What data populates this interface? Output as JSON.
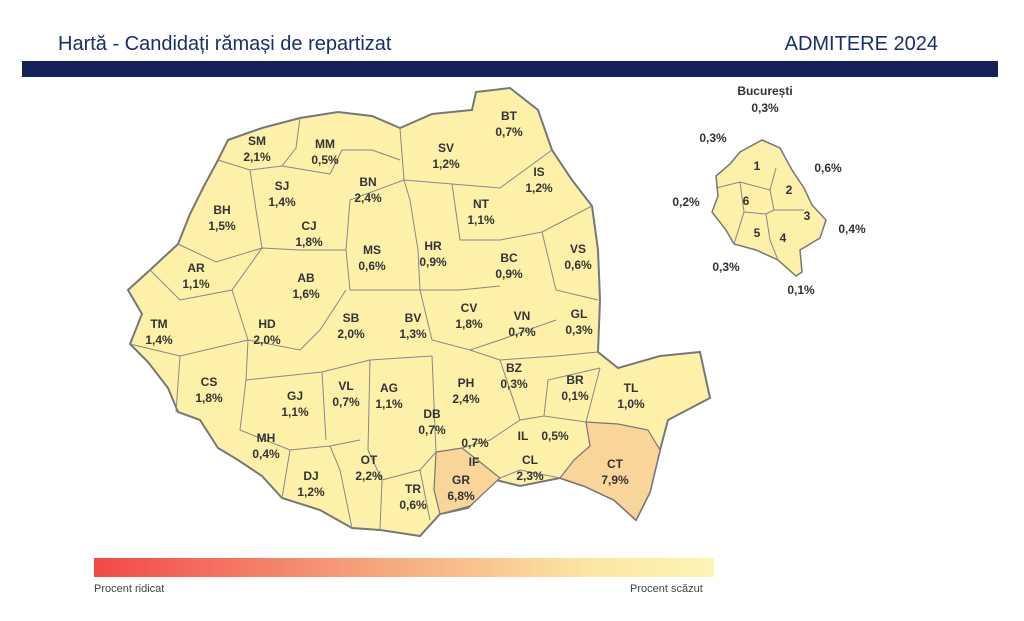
{
  "header": {
    "title": "Hartă - Candidați rămași de repartizat",
    "badge": "ADMITERE 2024"
  },
  "colors": {
    "header_bar": "#14215a",
    "county_fill": "#fdf0a8",
    "high_fill": "#fad59a",
    "border": "#777777"
  },
  "counties": [
    {
      "code": "SM",
      "value": "2,1%"
    },
    {
      "code": "MM",
      "value": "0,5%"
    },
    {
      "code": "BT",
      "value": "0,7%"
    },
    {
      "code": "SV",
      "value": "1,2%"
    },
    {
      "code": "IS",
      "value": "1,2%"
    },
    {
      "code": "BN",
      "value": "2,4%"
    },
    {
      "code": "SJ",
      "value": "1,4%"
    },
    {
      "code": "NT",
      "value": "1,1%"
    },
    {
      "code": "BH",
      "value": "1,5%"
    },
    {
      "code": "CJ",
      "value": "1,8%"
    },
    {
      "code": "MS",
      "value": "0,6%"
    },
    {
      "code": "HR",
      "value": "0,9%"
    },
    {
      "code": "VS",
      "value": "0,6%"
    },
    {
      "code": "BC",
      "value": "0,9%"
    },
    {
      "code": "AR",
      "value": "1,1%"
    },
    {
      "code": "AB",
      "value": "1,6%"
    },
    {
      "code": "SB",
      "value": "2,0%"
    },
    {
      "code": "BV",
      "value": "1,3%"
    },
    {
      "code": "CV",
      "value": "1,8%"
    },
    {
      "code": "VN",
      "value": "0,7%"
    },
    {
      "code": "GL",
      "value": "0,3%"
    },
    {
      "code": "TM",
      "value": "1,4%"
    },
    {
      "code": "HD",
      "value": "2,0%"
    },
    {
      "code": "CS",
      "value": "1,8%"
    },
    {
      "code": "GJ",
      "value": "1,1%"
    },
    {
      "code": "VL",
      "value": "0,7%"
    },
    {
      "code": "AG",
      "value": "1,1%"
    },
    {
      "code": "PH",
      "value": "2,4%"
    },
    {
      "code": "BZ",
      "value": "0,3%"
    },
    {
      "code": "BR",
      "value": "0,1%"
    },
    {
      "code": "TL",
      "value": "1,0%"
    },
    {
      "code": "DB",
      "value": "0,7%"
    },
    {
      "code": "MH",
      "value": "0,4%"
    },
    {
      "code": "IL",
      "value": "0,5%"
    },
    {
      "code": "IF",
      "value": "0,7%"
    },
    {
      "code": "CL",
      "value": "2,3%"
    },
    {
      "code": "CT",
      "value": "7,9%"
    },
    {
      "code": "DJ",
      "value": "1,2%"
    },
    {
      "code": "OT",
      "value": "2,2%"
    },
    {
      "code": "TR",
      "value": "0,6%"
    },
    {
      "code": "GR",
      "value": "6,8%"
    }
  ],
  "bucharest": {
    "title": "București",
    "total": "0,3%",
    "sectors": [
      {
        "num": "1",
        "value": "0,3%"
      },
      {
        "num": "2",
        "value": "0,6%"
      },
      {
        "num": "3",
        "value": "0,4%"
      },
      {
        "num": "4",
        "value": "0,1%"
      },
      {
        "num": "5",
        "value": "0,3%"
      },
      {
        "num": "6",
        "value": "0,2%"
      }
    ]
  },
  "legend": {
    "low_label": "Procent ridicat",
    "high_label": "Procent scăzut"
  }
}
